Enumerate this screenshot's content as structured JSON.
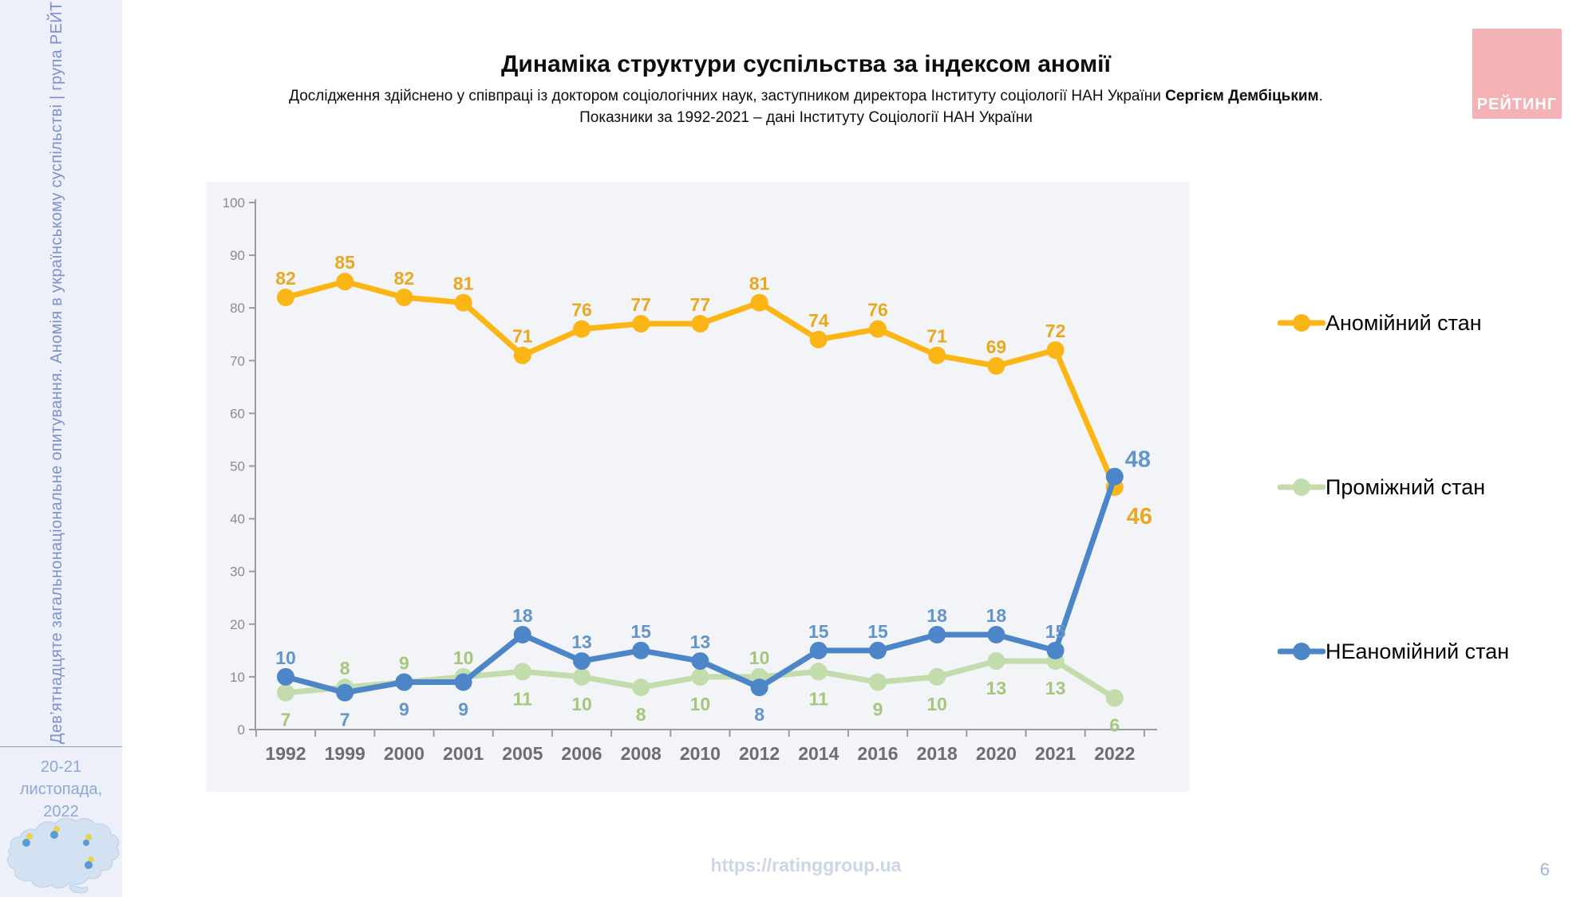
{
  "sidebar": {
    "vertical_text": "Дев’ятнадцяте загальнонаціональне опитування. Аномія в українському суспільстві | група РЕЙТИНГ",
    "date_line1": "20-21 листопада,",
    "date_line2": "2022"
  },
  "header": {
    "title": "Динаміка структури суспільства за індексом аномії",
    "subtitle_prefix": "Дослідження здійснено у співпраці із доктором соціологічних наук, заступником директора Інституту соціології НАН України ",
    "subtitle_bold": "Сергієм Дембіцьким",
    "subtitle_suffix": ".",
    "subtitle_line2": "Показники за 1992-2021 – дані Інституту Соціології НАН України"
  },
  "logo": {
    "text": "РЕЙТИНГ",
    "bg": "#f4b2b4",
    "fg": "#ffffff"
  },
  "footer": {
    "url": "https://ratinggroup.ua",
    "page_number": "6"
  },
  "colors": {
    "sidebar_bg": "#edf0f8",
    "sidebar_text": "#7d91cf",
    "date_text": "#8ea7d7",
    "url_text": "#ccd6e6",
    "page_number": "#9db6d9",
    "panel_bg": "#f2f4f8",
    "axis": "#9c9c9c",
    "x_label": "#6e6e6e",
    "y_label": "#8c8c8c",
    "map_fill": "#d3e2f2",
    "map_stroke": "#bccfe6",
    "map_spot_yellow": "#e8d34f",
    "map_spot_blue": "#5b9bd5"
  },
  "chart_data": {
    "type": "line",
    "title": "Динаміка структури суспільства за індексом аномії",
    "xlabel": "",
    "ylabel": "",
    "ylim": [
      0,
      100
    ],
    "y_ticks": [
      0,
      10,
      20,
      30,
      40,
      50,
      60,
      70,
      80,
      90,
      100
    ],
    "grid": false,
    "legend_position": "right",
    "categories": [
      "1992",
      "1999",
      "2000",
      "2001",
      "2005",
      "2006",
      "2008",
      "2010",
      "2012",
      "2014",
      "2016",
      "2018",
      "2020",
      "2021",
      "2022"
    ],
    "series": [
      {
        "name": "Аномійний стан",
        "color": "#FBB616",
        "label_color": "#E9A820",
        "values": [
          82,
          85,
          82,
          81,
          71,
          76,
          77,
          77,
          81,
          74,
          76,
          71,
          69,
          72,
          46
        ],
        "label_positions": [
          "above",
          "above",
          "above",
          "above",
          "above",
          "above",
          "above",
          "above",
          "above",
          "above",
          "above",
          "above",
          "above",
          "above",
          "right-below"
        ]
      },
      {
        "name": "Проміжний стан",
        "color": "#C3DCAB",
        "label_color": "#A4C77C",
        "values": [
          7,
          8,
          9,
          10,
          11,
          10,
          8,
          10,
          10,
          11,
          9,
          10,
          13,
          13,
          6
        ],
        "label_positions": [
          "below",
          "above",
          "above",
          "above",
          "below",
          "below",
          "below",
          "below",
          "above",
          "below",
          "below",
          "below",
          "below",
          "below",
          "below"
        ]
      },
      {
        "name": "НЕаномійний стан",
        "color": "#4C86C8",
        "label_color": "#6495C9",
        "values": [
          10,
          7,
          9,
          9,
          18,
          13,
          15,
          13,
          8,
          15,
          15,
          18,
          18,
          15,
          48
        ],
        "label_positions": [
          "above",
          "below",
          "below",
          "below",
          "above",
          "above",
          "above",
          "above",
          "below",
          "above",
          "above",
          "above",
          "above",
          "above",
          "right-above"
        ]
      }
    ]
  }
}
